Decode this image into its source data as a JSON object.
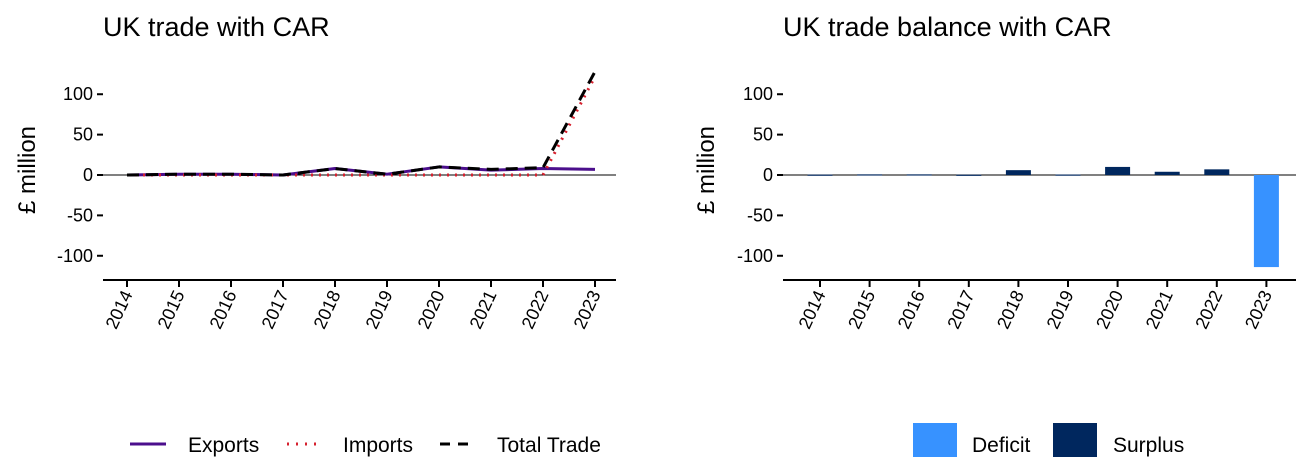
{
  "colors": {
    "exports": "#4B0F8C",
    "imports": "#D6202E",
    "total": "#000000",
    "deficit": "#3792FF",
    "surplus": "#00275E"
  },
  "chart_data": [
    {
      "type": "line",
      "title": "UK trade with CAR",
      "ylabel": "£ million",
      "x": [
        "2014",
        "2015",
        "2016",
        "2017",
        "2018",
        "2019",
        "2020",
        "2021",
        "2022",
        "2023"
      ],
      "ylim": [
        -130,
        130
      ],
      "yticks": [
        "-100",
        "-50",
        "0",
        "50",
        "100"
      ],
      "legend_position": "bottom",
      "series": [
        {
          "name": "Exports",
          "style": "solid",
          "values": [
            0,
            1,
            1,
            0,
            8,
            1,
            10,
            6,
            8,
            7
          ]
        },
        {
          "name": "Imports",
          "style": "dotted",
          "values": [
            0,
            0,
            0,
            0,
            0,
            0,
            0,
            0,
            0,
            122
          ]
        },
        {
          "name": "Total Trade",
          "style": "dashed",
          "values": [
            0,
            1,
            1,
            0,
            8,
            1,
            10,
            7,
            9,
            128
          ]
        }
      ]
    },
    {
      "type": "bar",
      "title": "UK trade balance with CAR",
      "ylabel": "£ million",
      "categories": [
        "2014",
        "2015",
        "2016",
        "2017",
        "2018",
        "2019",
        "2020",
        "2021",
        "2022",
        "2023"
      ],
      "values": [
        0.5,
        0.8,
        0.8,
        0.4,
        6,
        0.6,
        10,
        4,
        7,
        -114
      ],
      "ylim": [
        -130,
        130
      ],
      "yticks": [
        "-100",
        "-50",
        "0",
        "50",
        "100"
      ],
      "legend_position": "bottom",
      "legend": [
        "Deficit",
        "Surplus"
      ]
    }
  ]
}
